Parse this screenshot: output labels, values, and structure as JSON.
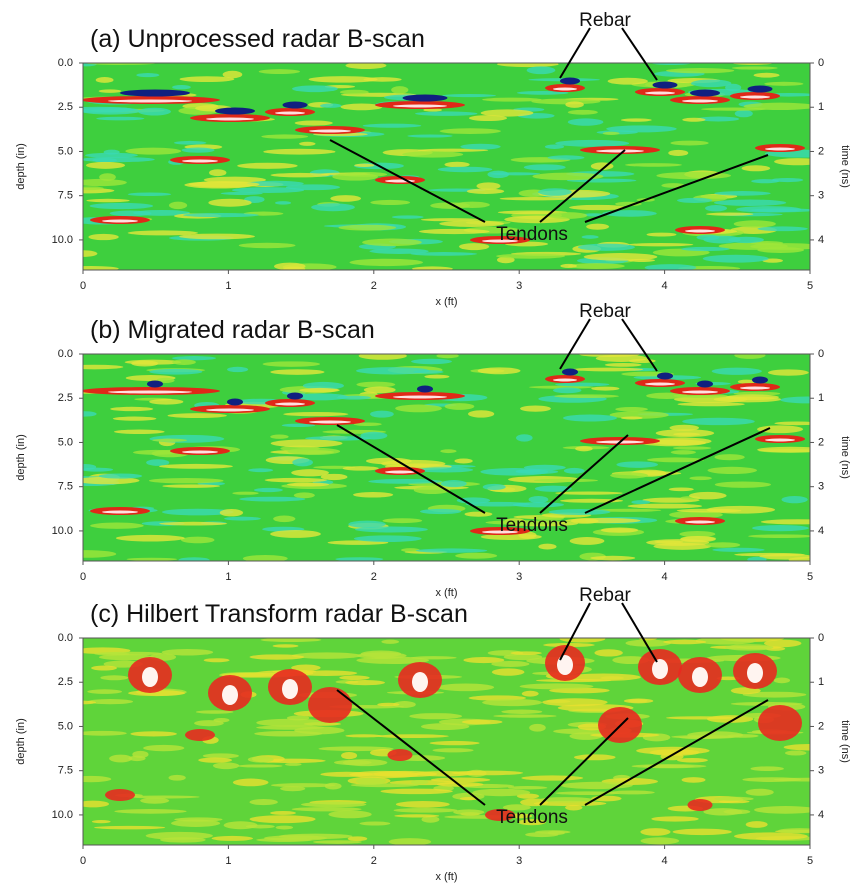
{
  "panels": [
    {
      "title": "(a) Unprocessed radar B-scan",
      "style": "raw"
    },
    {
      "title": "(b) Migrated radar B-scan",
      "style": "migrated"
    },
    {
      "title": "(c) Hilbert Transform radar B-scan",
      "style": "envelope"
    }
  ],
  "annotations": {
    "rebar": "Rebar",
    "tendons": "Tendons"
  },
  "axes": {
    "x_label": "x (ft)",
    "depth_label": "depth (in)",
    "time_label": "time (ns)",
    "xlim": [
      0,
      5
    ],
    "xticks": [
      0,
      1,
      2,
      3,
      4,
      5
    ],
    "depth_lim": [
      0,
      11.7
    ],
    "depth_ticks": [
      {
        "value": 0,
        "label": "0.0"
      },
      {
        "value": 2.5,
        "label": "2.5"
      },
      {
        "value": 5,
        "label": "5.0"
      },
      {
        "value": 7.5,
        "label": "7.5"
      },
      {
        "value": 10,
        "label": "10.0"
      }
    ],
    "time_lim": [
      0,
      4.68
    ],
    "time_ticks": [
      0,
      1,
      2,
      3,
      4
    ]
  }
}
